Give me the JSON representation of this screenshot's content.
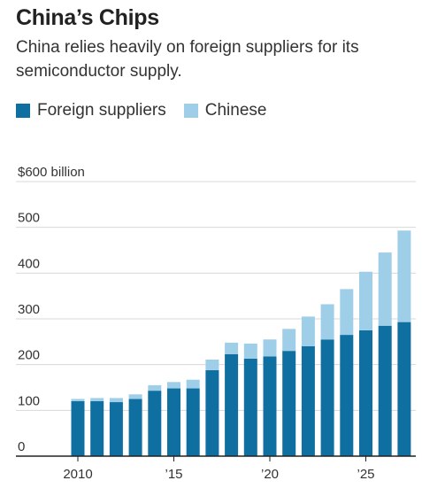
{
  "title": "China’s Chips",
  "subtitle": "China relies heavily on foreign suppliers for its semiconductor supply.",
  "legend": [
    {
      "label": "Foreign suppliers",
      "color": "#0f6fa0"
    },
    {
      "label": "Chinese",
      "color": "#9fcfe8"
    }
  ],
  "chart_data": {
    "type": "bar",
    "stacked": true,
    "title": "China’s Chips",
    "subtitle": "China relies heavily on foreign suppliers for its semiconductor supply.",
    "ylabel": "",
    "xlabel": "",
    "ylim": [
      0,
      600
    ],
    "y_ticks": [
      {
        "value": 0,
        "label": "0"
      },
      {
        "value": 100,
        "label": "100"
      },
      {
        "value": 200,
        "label": "200"
      },
      {
        "value": 300,
        "label": "300"
      },
      {
        "value": 400,
        "label": "400"
      },
      {
        "value": 500,
        "label": "500"
      },
      {
        "value": 600,
        "label": "$600 billion"
      }
    ],
    "x_ticks": [
      {
        "year": 2010,
        "label": "2010"
      },
      {
        "year": 2015,
        "label": "’15"
      },
      {
        "year": 2020,
        "label": "’20"
      },
      {
        "year": 2025,
        "label": "’25"
      }
    ],
    "categories": [
      2010,
      2011,
      2012,
      2013,
      2014,
      2015,
      2016,
      2017,
      2018,
      2019,
      2020,
      2021,
      2022,
      2023,
      2024,
      2025,
      2026,
      2027
    ],
    "series": [
      {
        "name": "Foreign suppliers",
        "color": "#0f6fa0",
        "values": [
          120,
          120,
          118,
          125,
          143,
          148,
          148,
          188,
          223,
          213,
          218,
          230,
          240,
          255,
          265,
          275,
          285,
          293
        ]
      },
      {
        "name": "Chinese",
        "color": "#9fcfe8",
        "values": [
          5,
          7,
          9,
          10,
          12,
          14,
          19,
          23,
          25,
          33,
          37,
          48,
          65,
          77,
          100,
          128,
          160,
          200
        ]
      }
    ],
    "grid": true,
    "legend_position": "top-left"
  }
}
